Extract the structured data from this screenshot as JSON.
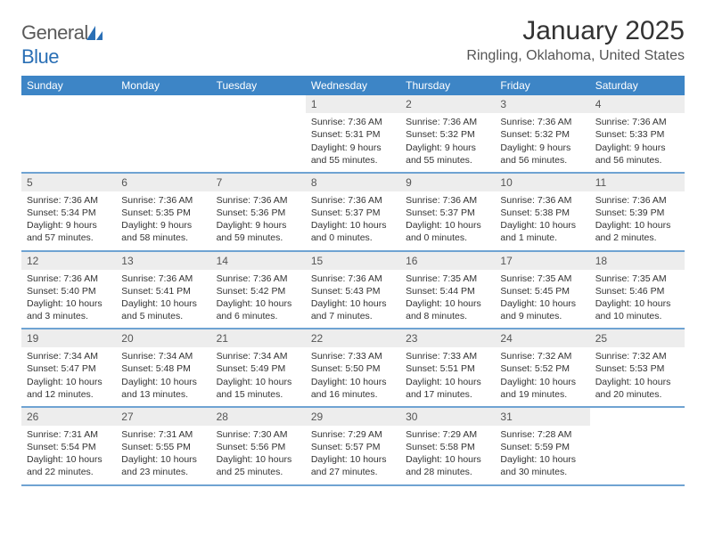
{
  "brand": {
    "name_part1": "General",
    "name_part2": "Blue",
    "logo_color": "#2a6fb5"
  },
  "header": {
    "month_title": "January 2025",
    "location": "Ringling, Oklahoma, United States"
  },
  "colors": {
    "header_bar": "#3d85c6",
    "week_divider": "#6fa3d2",
    "daynum_bg": "#ededed",
    "text": "#333333",
    "muted": "#555555",
    "background": "#ffffff"
  },
  "day_names": [
    "Sunday",
    "Monday",
    "Tuesday",
    "Wednesday",
    "Thursday",
    "Friday",
    "Saturday"
  ],
  "weeks": [
    [
      {
        "day": "",
        "sunrise": "",
        "sunset": "",
        "daylight": ""
      },
      {
        "day": "",
        "sunrise": "",
        "sunset": "",
        "daylight": ""
      },
      {
        "day": "",
        "sunrise": "",
        "sunset": "",
        "daylight": ""
      },
      {
        "day": "1",
        "sunrise": "Sunrise: 7:36 AM",
        "sunset": "Sunset: 5:31 PM",
        "daylight": "Daylight: 9 hours and 55 minutes."
      },
      {
        "day": "2",
        "sunrise": "Sunrise: 7:36 AM",
        "sunset": "Sunset: 5:32 PM",
        "daylight": "Daylight: 9 hours and 55 minutes."
      },
      {
        "day": "3",
        "sunrise": "Sunrise: 7:36 AM",
        "sunset": "Sunset: 5:32 PM",
        "daylight": "Daylight: 9 hours and 56 minutes."
      },
      {
        "day": "4",
        "sunrise": "Sunrise: 7:36 AM",
        "sunset": "Sunset: 5:33 PM",
        "daylight": "Daylight: 9 hours and 56 minutes."
      }
    ],
    [
      {
        "day": "5",
        "sunrise": "Sunrise: 7:36 AM",
        "sunset": "Sunset: 5:34 PM",
        "daylight": "Daylight: 9 hours and 57 minutes."
      },
      {
        "day": "6",
        "sunrise": "Sunrise: 7:36 AM",
        "sunset": "Sunset: 5:35 PM",
        "daylight": "Daylight: 9 hours and 58 minutes."
      },
      {
        "day": "7",
        "sunrise": "Sunrise: 7:36 AM",
        "sunset": "Sunset: 5:36 PM",
        "daylight": "Daylight: 9 hours and 59 minutes."
      },
      {
        "day": "8",
        "sunrise": "Sunrise: 7:36 AM",
        "sunset": "Sunset: 5:37 PM",
        "daylight": "Daylight: 10 hours and 0 minutes."
      },
      {
        "day": "9",
        "sunrise": "Sunrise: 7:36 AM",
        "sunset": "Sunset: 5:37 PM",
        "daylight": "Daylight: 10 hours and 0 minutes."
      },
      {
        "day": "10",
        "sunrise": "Sunrise: 7:36 AM",
        "sunset": "Sunset: 5:38 PM",
        "daylight": "Daylight: 10 hours and 1 minute."
      },
      {
        "day": "11",
        "sunrise": "Sunrise: 7:36 AM",
        "sunset": "Sunset: 5:39 PM",
        "daylight": "Daylight: 10 hours and 2 minutes."
      }
    ],
    [
      {
        "day": "12",
        "sunrise": "Sunrise: 7:36 AM",
        "sunset": "Sunset: 5:40 PM",
        "daylight": "Daylight: 10 hours and 3 minutes."
      },
      {
        "day": "13",
        "sunrise": "Sunrise: 7:36 AM",
        "sunset": "Sunset: 5:41 PM",
        "daylight": "Daylight: 10 hours and 5 minutes."
      },
      {
        "day": "14",
        "sunrise": "Sunrise: 7:36 AM",
        "sunset": "Sunset: 5:42 PM",
        "daylight": "Daylight: 10 hours and 6 minutes."
      },
      {
        "day": "15",
        "sunrise": "Sunrise: 7:36 AM",
        "sunset": "Sunset: 5:43 PM",
        "daylight": "Daylight: 10 hours and 7 minutes."
      },
      {
        "day": "16",
        "sunrise": "Sunrise: 7:35 AM",
        "sunset": "Sunset: 5:44 PM",
        "daylight": "Daylight: 10 hours and 8 minutes."
      },
      {
        "day": "17",
        "sunrise": "Sunrise: 7:35 AM",
        "sunset": "Sunset: 5:45 PM",
        "daylight": "Daylight: 10 hours and 9 minutes."
      },
      {
        "day": "18",
        "sunrise": "Sunrise: 7:35 AM",
        "sunset": "Sunset: 5:46 PM",
        "daylight": "Daylight: 10 hours and 10 minutes."
      }
    ],
    [
      {
        "day": "19",
        "sunrise": "Sunrise: 7:34 AM",
        "sunset": "Sunset: 5:47 PM",
        "daylight": "Daylight: 10 hours and 12 minutes."
      },
      {
        "day": "20",
        "sunrise": "Sunrise: 7:34 AM",
        "sunset": "Sunset: 5:48 PM",
        "daylight": "Daylight: 10 hours and 13 minutes."
      },
      {
        "day": "21",
        "sunrise": "Sunrise: 7:34 AM",
        "sunset": "Sunset: 5:49 PM",
        "daylight": "Daylight: 10 hours and 15 minutes."
      },
      {
        "day": "22",
        "sunrise": "Sunrise: 7:33 AM",
        "sunset": "Sunset: 5:50 PM",
        "daylight": "Daylight: 10 hours and 16 minutes."
      },
      {
        "day": "23",
        "sunrise": "Sunrise: 7:33 AM",
        "sunset": "Sunset: 5:51 PM",
        "daylight": "Daylight: 10 hours and 17 minutes."
      },
      {
        "day": "24",
        "sunrise": "Sunrise: 7:32 AM",
        "sunset": "Sunset: 5:52 PM",
        "daylight": "Daylight: 10 hours and 19 minutes."
      },
      {
        "day": "25",
        "sunrise": "Sunrise: 7:32 AM",
        "sunset": "Sunset: 5:53 PM",
        "daylight": "Daylight: 10 hours and 20 minutes."
      }
    ],
    [
      {
        "day": "26",
        "sunrise": "Sunrise: 7:31 AM",
        "sunset": "Sunset: 5:54 PM",
        "daylight": "Daylight: 10 hours and 22 minutes."
      },
      {
        "day": "27",
        "sunrise": "Sunrise: 7:31 AM",
        "sunset": "Sunset: 5:55 PM",
        "daylight": "Daylight: 10 hours and 23 minutes."
      },
      {
        "day": "28",
        "sunrise": "Sunrise: 7:30 AM",
        "sunset": "Sunset: 5:56 PM",
        "daylight": "Daylight: 10 hours and 25 minutes."
      },
      {
        "day": "29",
        "sunrise": "Sunrise: 7:29 AM",
        "sunset": "Sunset: 5:57 PM",
        "daylight": "Daylight: 10 hours and 27 minutes."
      },
      {
        "day": "30",
        "sunrise": "Sunrise: 7:29 AM",
        "sunset": "Sunset: 5:58 PM",
        "daylight": "Daylight: 10 hours and 28 minutes."
      },
      {
        "day": "31",
        "sunrise": "Sunrise: 7:28 AM",
        "sunset": "Sunset: 5:59 PM",
        "daylight": "Daylight: 10 hours and 30 minutes."
      },
      {
        "day": "",
        "sunrise": "",
        "sunset": "",
        "daylight": ""
      }
    ]
  ]
}
